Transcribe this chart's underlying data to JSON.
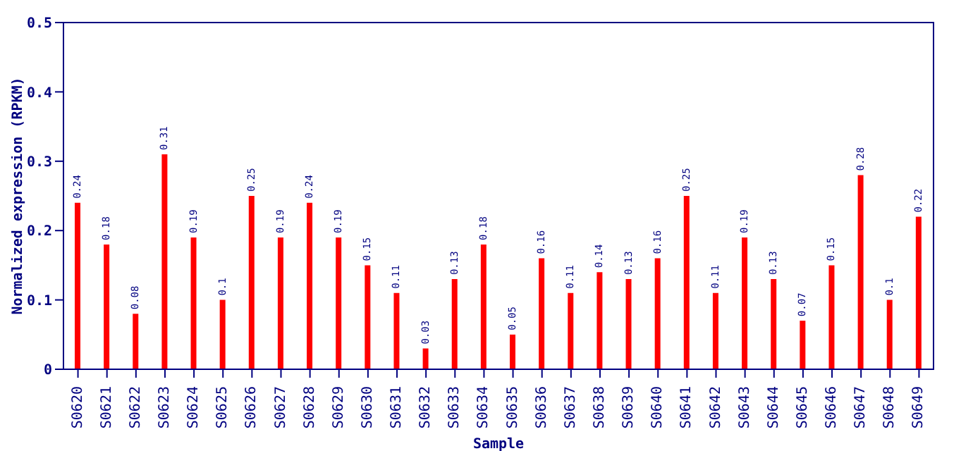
{
  "chart_data": {
    "type": "bar",
    "xlabel": "Sample",
    "ylabel": "Normalized expression (RPKM)",
    "categories": [
      "S0620",
      "S0621",
      "S0622",
      "S0623",
      "S0624",
      "S0625",
      "S0626",
      "S0627",
      "S0628",
      "S0629",
      "S0630",
      "S0631",
      "S0632",
      "S0633",
      "S0634",
      "S0635",
      "S0636",
      "S0637",
      "S0638",
      "S0639",
      "S0640",
      "S0641",
      "S0642",
      "S0643",
      "S0644",
      "S0645",
      "S0646",
      "S0647",
      "S0648",
      "S0649"
    ],
    "values": [
      0.24,
      0.18,
      0.08,
      0.31,
      0.19,
      0.1,
      0.25,
      0.19,
      0.24,
      0.19,
      0.15,
      0.11,
      0.03,
      0.13,
      0.18,
      0.05,
      0.16,
      0.11,
      0.14,
      0.13,
      0.16,
      0.25,
      0.11,
      0.19,
      0.13,
      0.07,
      0.15,
      0.28,
      0.1,
      0.22
    ],
    "color": "#ff0000",
    "ylim": [
      0,
      0.5
    ],
    "yticks": [
      0,
      0.1,
      0.2,
      0.3,
      0.4,
      0.5
    ],
    "data_labels": true,
    "grid": false
  }
}
